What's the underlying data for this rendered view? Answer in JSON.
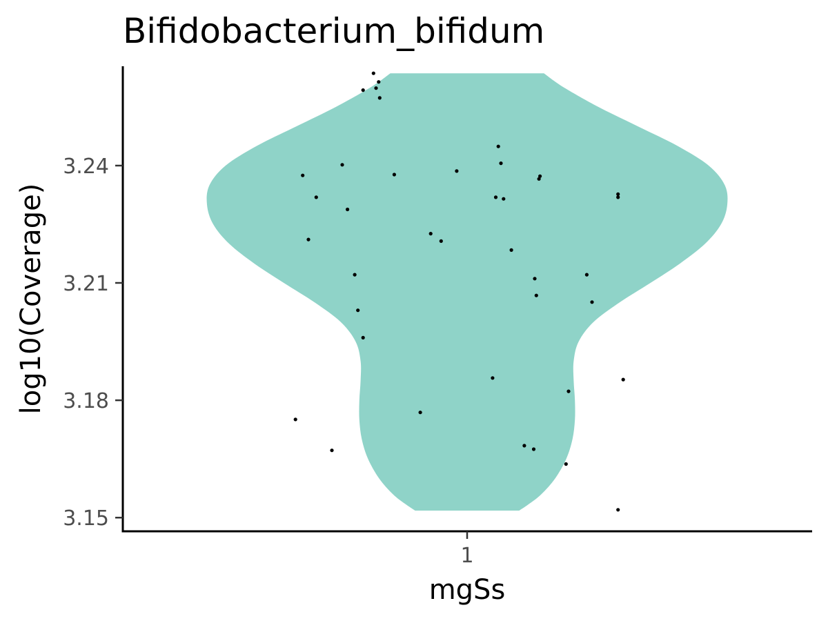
{
  "chart_data": {
    "type": "violin",
    "title": "Bifidobacterium_bifidum",
    "xlabel": "mgSs",
    "ylabel": "log10(Coverage)",
    "categories": [
      "1"
    ],
    "y_ticks": [
      "3.15",
      "3.18",
      "3.21",
      "3.24"
    ],
    "y_tick_values": [
      3.15,
      3.18,
      3.21,
      3.24
    ],
    "ylim": [
      3.1465,
      3.2654
    ],
    "grid": false,
    "legend": "none",
    "fill_color": "#8fd3c8",
    "point_color": "#000000",
    "violin_range": [
      3.1518,
      3.2636
    ],
    "violin_density": [
      [
        3.1518,
        0.42
      ],
      [
        3.1535,
        0.5
      ],
      [
        3.156,
        0.6
      ],
      [
        3.16,
        0.71
      ],
      [
        3.165,
        0.8
      ],
      [
        3.17,
        0.85
      ],
      [
        3.175,
        0.87
      ],
      [
        3.18,
        0.87
      ],
      [
        3.185,
        0.86
      ],
      [
        3.19,
        0.86
      ],
      [
        3.195,
        0.9
      ],
      [
        3.2,
        1.02
      ],
      [
        3.205,
        1.23
      ],
      [
        3.21,
        1.48
      ],
      [
        3.215,
        1.72
      ],
      [
        3.22,
        1.92
      ],
      [
        3.225,
        2.05
      ],
      [
        3.23,
        2.1
      ],
      [
        3.235,
        2.08
      ],
      [
        3.24,
        1.95
      ],
      [
        3.245,
        1.7
      ],
      [
        3.25,
        1.38
      ],
      [
        3.255,
        1.06
      ],
      [
        3.26,
        0.78
      ],
      [
        3.2636,
        0.62
      ]
    ],
    "points": [
      [
        -0.18,
        3.2636
      ],
      [
        -0.17,
        3.2614
      ],
      [
        -0.2,
        3.2593
      ],
      [
        -0.175,
        3.2598
      ],
      [
        -0.168,
        3.2573
      ],
      [
        0.06,
        3.2449
      ],
      [
        0.065,
        3.2406
      ],
      [
        0.14,
        3.2373
      ],
      [
        0.138,
        3.2366
      ],
      [
        0.29,
        3.2327
      ],
      [
        0.29,
        3.2319
      ],
      [
        -0.316,
        3.2375
      ],
      [
        -0.24,
        3.2402
      ],
      [
        -0.14,
        3.2377
      ],
      [
        -0.02,
        3.2386
      ],
      [
        -0.29,
        3.2319
      ],
      [
        0.055,
        3.2319
      ],
      [
        0.07,
        3.2315
      ],
      [
        -0.23,
        3.2288
      ],
      [
        -0.07,
        3.2226
      ],
      [
        -0.05,
        3.2207
      ],
      [
        -0.305,
        3.2211
      ],
      [
        0.085,
        3.2184
      ],
      [
        -0.216,
        3.2121
      ],
      [
        0.23,
        3.2121
      ],
      [
        0.13,
        3.2111
      ],
      [
        0.133,
        3.2068
      ],
      [
        0.24,
        3.2051
      ],
      [
        -0.21,
        3.203
      ],
      [
        -0.2,
        3.196
      ],
      [
        0.049,
        3.1857
      ],
      [
        0.3,
        3.1853
      ],
      [
        0.195,
        3.1823
      ],
      [
        -0.09,
        3.1769
      ],
      [
        -0.33,
        3.1751
      ],
      [
        0.11,
        3.1684
      ],
      [
        0.128,
        3.1675
      ],
      [
        -0.26,
        3.1672
      ],
      [
        0.19,
        3.1637
      ],
      [
        0.29,
        3.152
      ]
    ]
  }
}
